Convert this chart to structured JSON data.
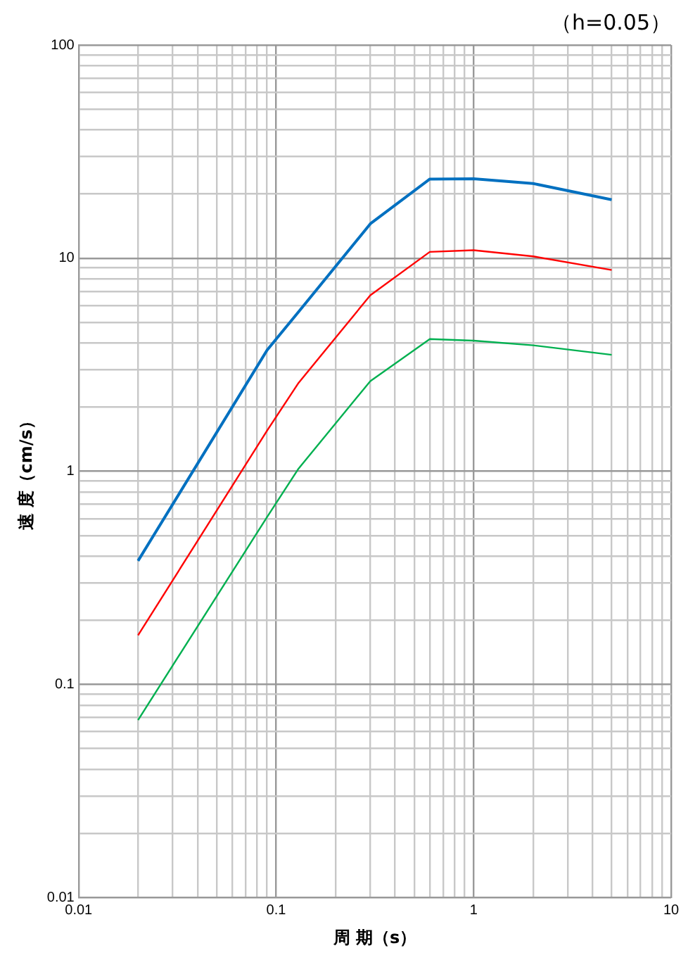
{
  "chart_data": {
    "type": "line",
    "title": "（h=0.05）",
    "xlabel": "周 期（s）",
    "ylabel": "速 度（cm/s）",
    "log": "xy",
    "grid": true,
    "legend": false,
    "marker": "none",
    "line_style": "solid",
    "x": [
      0.02,
      0.09,
      0.13,
      0.3,
      0.6,
      1,
      2,
      5
    ],
    "series": [
      {
        "color": "#0070c0",
        "values": [
          0.38,
          3.7,
          5.6,
          14.5,
          23.5,
          23.6,
          22.4,
          18.8
        ]
      },
      {
        "color": "#ff0000",
        "values": [
          0.17,
          1.55,
          2.6,
          6.7,
          10.7,
          10.9,
          10.2,
          8.8
        ]
      },
      {
        "color": "#00b050",
        "values": [
          0.068,
          0.61,
          1.03,
          2.65,
          4.17,
          4.1,
          3.9,
          3.52
        ]
      }
    ],
    "xlim": [
      0.01,
      10
    ],
    "ylim": [
      0.01,
      100
    ],
    "xticks": [
      "0.01",
      {
        "value": 0.02,
        "label": null
      },
      {
        "value": 0.03,
        "label": null
      },
      {
        "value": 0.04,
        "label": null
      },
      {
        "value": 0.05,
        "label": null
      },
      {
        "value": 0.06,
        "label": null
      },
      {
        "value": 0.07,
        "label": null
      },
      {
        "value": 0.08,
        "label": null
      },
      {
        "value": 0.09,
        "label": null
      },
      {
        "value": 0.1,
        "label": "0.1"
      },
      {
        "value": 0.2,
        "label": null
      },
      {
        "value": 0.3,
        "label": null
      },
      {
        "value": 0.4,
        "label": null
      },
      {
        "value": 0.5,
        "label": null
      },
      {
        "value": 0.6,
        "label": null
      },
      {
        "value": 0.7,
        "label": null
      },
      {
        "value": 0.8,
        "label": null
      },
      {
        "value": 0.9,
        "label": null
      },
      1,
      {
        "value": 2,
        "label": null
      },
      {
        "value": 3,
        "label": null
      },
      {
        "value": 4,
        "label": null
      },
      {
        "value": 5,
        "label": null
      },
      {
        "value": 6,
        "label": null
      },
      {
        "value": 7,
        "label": null
      },
      {
        "value": 8,
        "label": null
      },
      {
        "value": 9,
        "label": null
      },
      10
    ],
    "yticks": [
      {
        "value": 0.01,
        "label": "0.01"
      },
      {
        "value": 0.02,
        "label": null
      },
      {
        "value": 0.03,
        "label": null
      },
      {
        "value": 0.04,
        "label": null
      },
      {
        "value": 0.05,
        "label": null
      },
      {
        "value": 0.06,
        "label": null
      },
      {
        "value": 0.07,
        "label": null
      },
      {
        "value": 0.08,
        "label": null
      },
      {
        "value": 0.09,
        "label": null
      },
      {
        "value": 0.1,
        "label": "0.1"
      },
      {
        "value": 0.2,
        "label": null
      },
      {
        "value": 0.3,
        "label": null
      },
      {
        "value": 0.4,
        "label": null
      },
      {
        "value": 0.5,
        "label": null
      },
      {
        "value": 0.6,
        "label": null
      },
      {
        "value": 0.7,
        "label": null
      },
      {
        "value": 0.8,
        "label": null
      },
      {
        "value": 0.9,
        "label": null
      },
      1,
      {
        "value": 2,
        "label": null
      },
      {
        "value": 3,
        "label": null
      },
      {
        "value": 4,
        "label": null
      },
      {
        "value": 5,
        "label": null
      },
      {
        "value": 6,
        "label": null
      },
      {
        "value": 7,
        "label": null
      },
      {
        "value": 8,
        "label": null
      },
      {
        "value": 9,
        "label": null
      },
      10,
      {
        "value": 20,
        "label": null
      },
      {
        "value": 30,
        "label": null
      },
      {
        "value": 40,
        "label": null
      },
      {
        "value": 50,
        "label": null
      },
      {
        "value": 60,
        "label": null
      },
      {
        "value": 70,
        "label": null
      },
      {
        "value": 80,
        "label": null
      },
      {
        "value": 90,
        "label": null
      },
      100
    ]
  }
}
